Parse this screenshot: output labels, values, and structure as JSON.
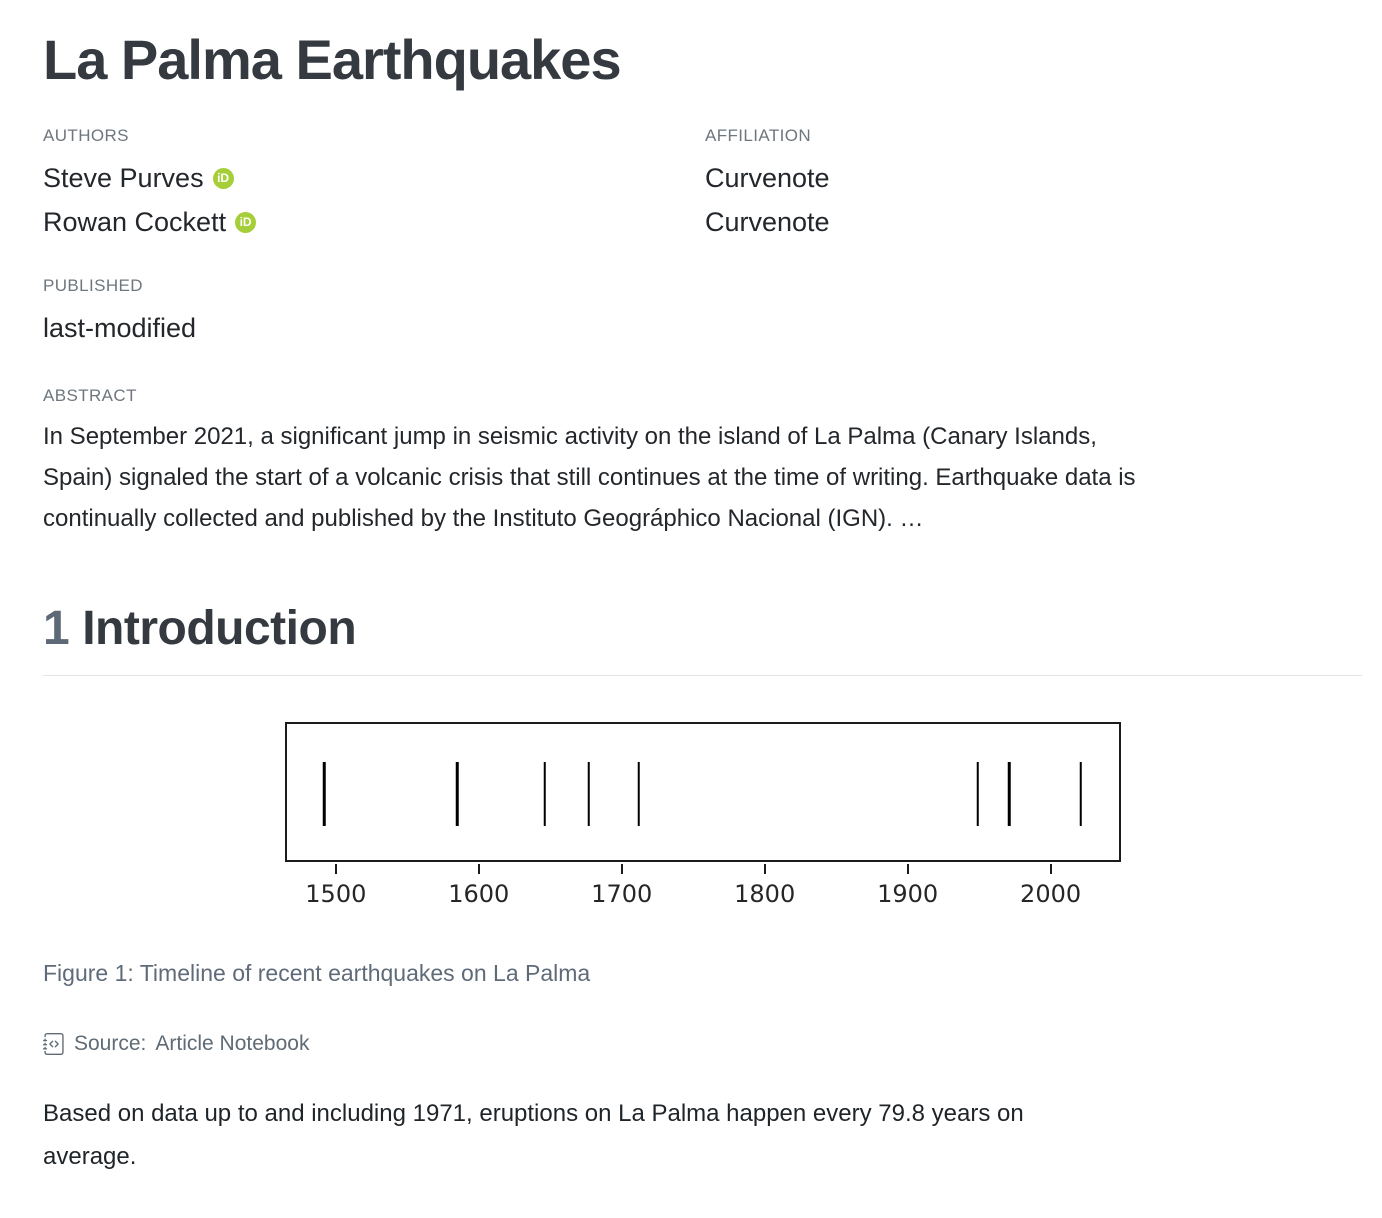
{
  "header": {
    "title": "La Palma Earthquakes",
    "authors_label": "AUTHORS",
    "authors": [
      {
        "name": "Steve Purves"
      },
      {
        "name": "Rowan Cockett"
      }
    ],
    "affiliation_label": "AFFILIATION",
    "affiliations": [
      "Curvenote",
      "Curvenote"
    ],
    "published_label": "PUBLISHED",
    "published_value": "last-modified",
    "abstract_label": "ABSTRACT",
    "abstract_text": "In September 2021, a significant jump in seismic activity on the island of La Palma (Canary Islands,\nSpain) signaled the start of a volcanic crisis that still continues at the time of writing. Earthquake data is\ncontinually collected and published by the Instituto Geográphico Nacional (IGN). …"
  },
  "section": {
    "number": "1",
    "title": "Introduction"
  },
  "figure": {
    "caption": "Figure 1: Timeline of recent earthquakes on La Palma",
    "source_label": "Source:",
    "source_link_text": "Article Notebook"
  },
  "body": {
    "paragraph": "Based on data up to and including 1971, eruptions on La Palma happen every 79.8 years on\naverage."
  },
  "icons": {
    "orcid_badge_text": "iD",
    "source_icon_name": "journal-code-icon"
  },
  "chart_data": {
    "type": "scatter",
    "subtype": "eventplot",
    "title": "Timeline of recent earthquakes on La Palma",
    "events": [
      1492,
      1585,
      1646,
      1677,
      1712,
      1949,
      1971,
      2021
    ],
    "xlim": [
      1465.5,
      2047.5
    ],
    "xticks": [
      1500,
      1600,
      1700,
      1800,
      1900,
      2000
    ],
    "yticks": [],
    "grid": false,
    "xlabel": "",
    "ylabel": "",
    "line_color": "#000000",
    "legend_position": "none"
  },
  "colors": {
    "heading": "#343a40",
    "body_text": "#23272b",
    "muted_label": "#6e767e",
    "caption": "#5f6b78",
    "divider": "#e2e5e8",
    "orcid_green": "#a6ce39",
    "plot_line": "#000000"
  }
}
